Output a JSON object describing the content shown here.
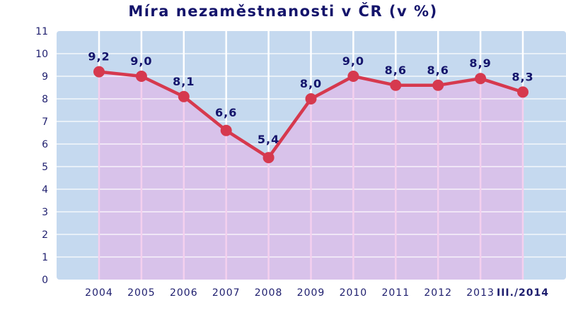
{
  "chart_data": {
    "type": "line",
    "title": "Míra nezaměstnanosti v ČR (v %)",
    "xlabel": "",
    "ylabel": "",
    "categories": [
      "2004",
      "2005",
      "2006",
      "2007",
      "2008",
      "2009",
      "2010",
      "2011",
      "2012",
      "2013",
      "III./2014"
    ],
    "values": [
      9.2,
      9.0,
      8.1,
      6.6,
      5.4,
      8.0,
      9.0,
      8.6,
      8.6,
      8.9,
      8.3
    ],
    "data_labels": [
      "9,2",
      "9,0",
      "8,1",
      "6,6",
      "5,4",
      "8,0",
      "9,0",
      "8,6",
      "8,6",
      "8,9",
      "8,3"
    ],
    "yticks": [
      "0",
      "1",
      "2",
      "3",
      "4",
      "5",
      "6",
      "7",
      "8",
      "9",
      "10",
      "11"
    ],
    "ylim": [
      0,
      11
    ],
    "grid": true,
    "legend": null,
    "colors": {
      "plot_background": "#c5d9ef",
      "area_fill": "#d8c2ea",
      "line": "#d6394e",
      "marker": "#d6394e",
      "text": "#14146b"
    }
  }
}
